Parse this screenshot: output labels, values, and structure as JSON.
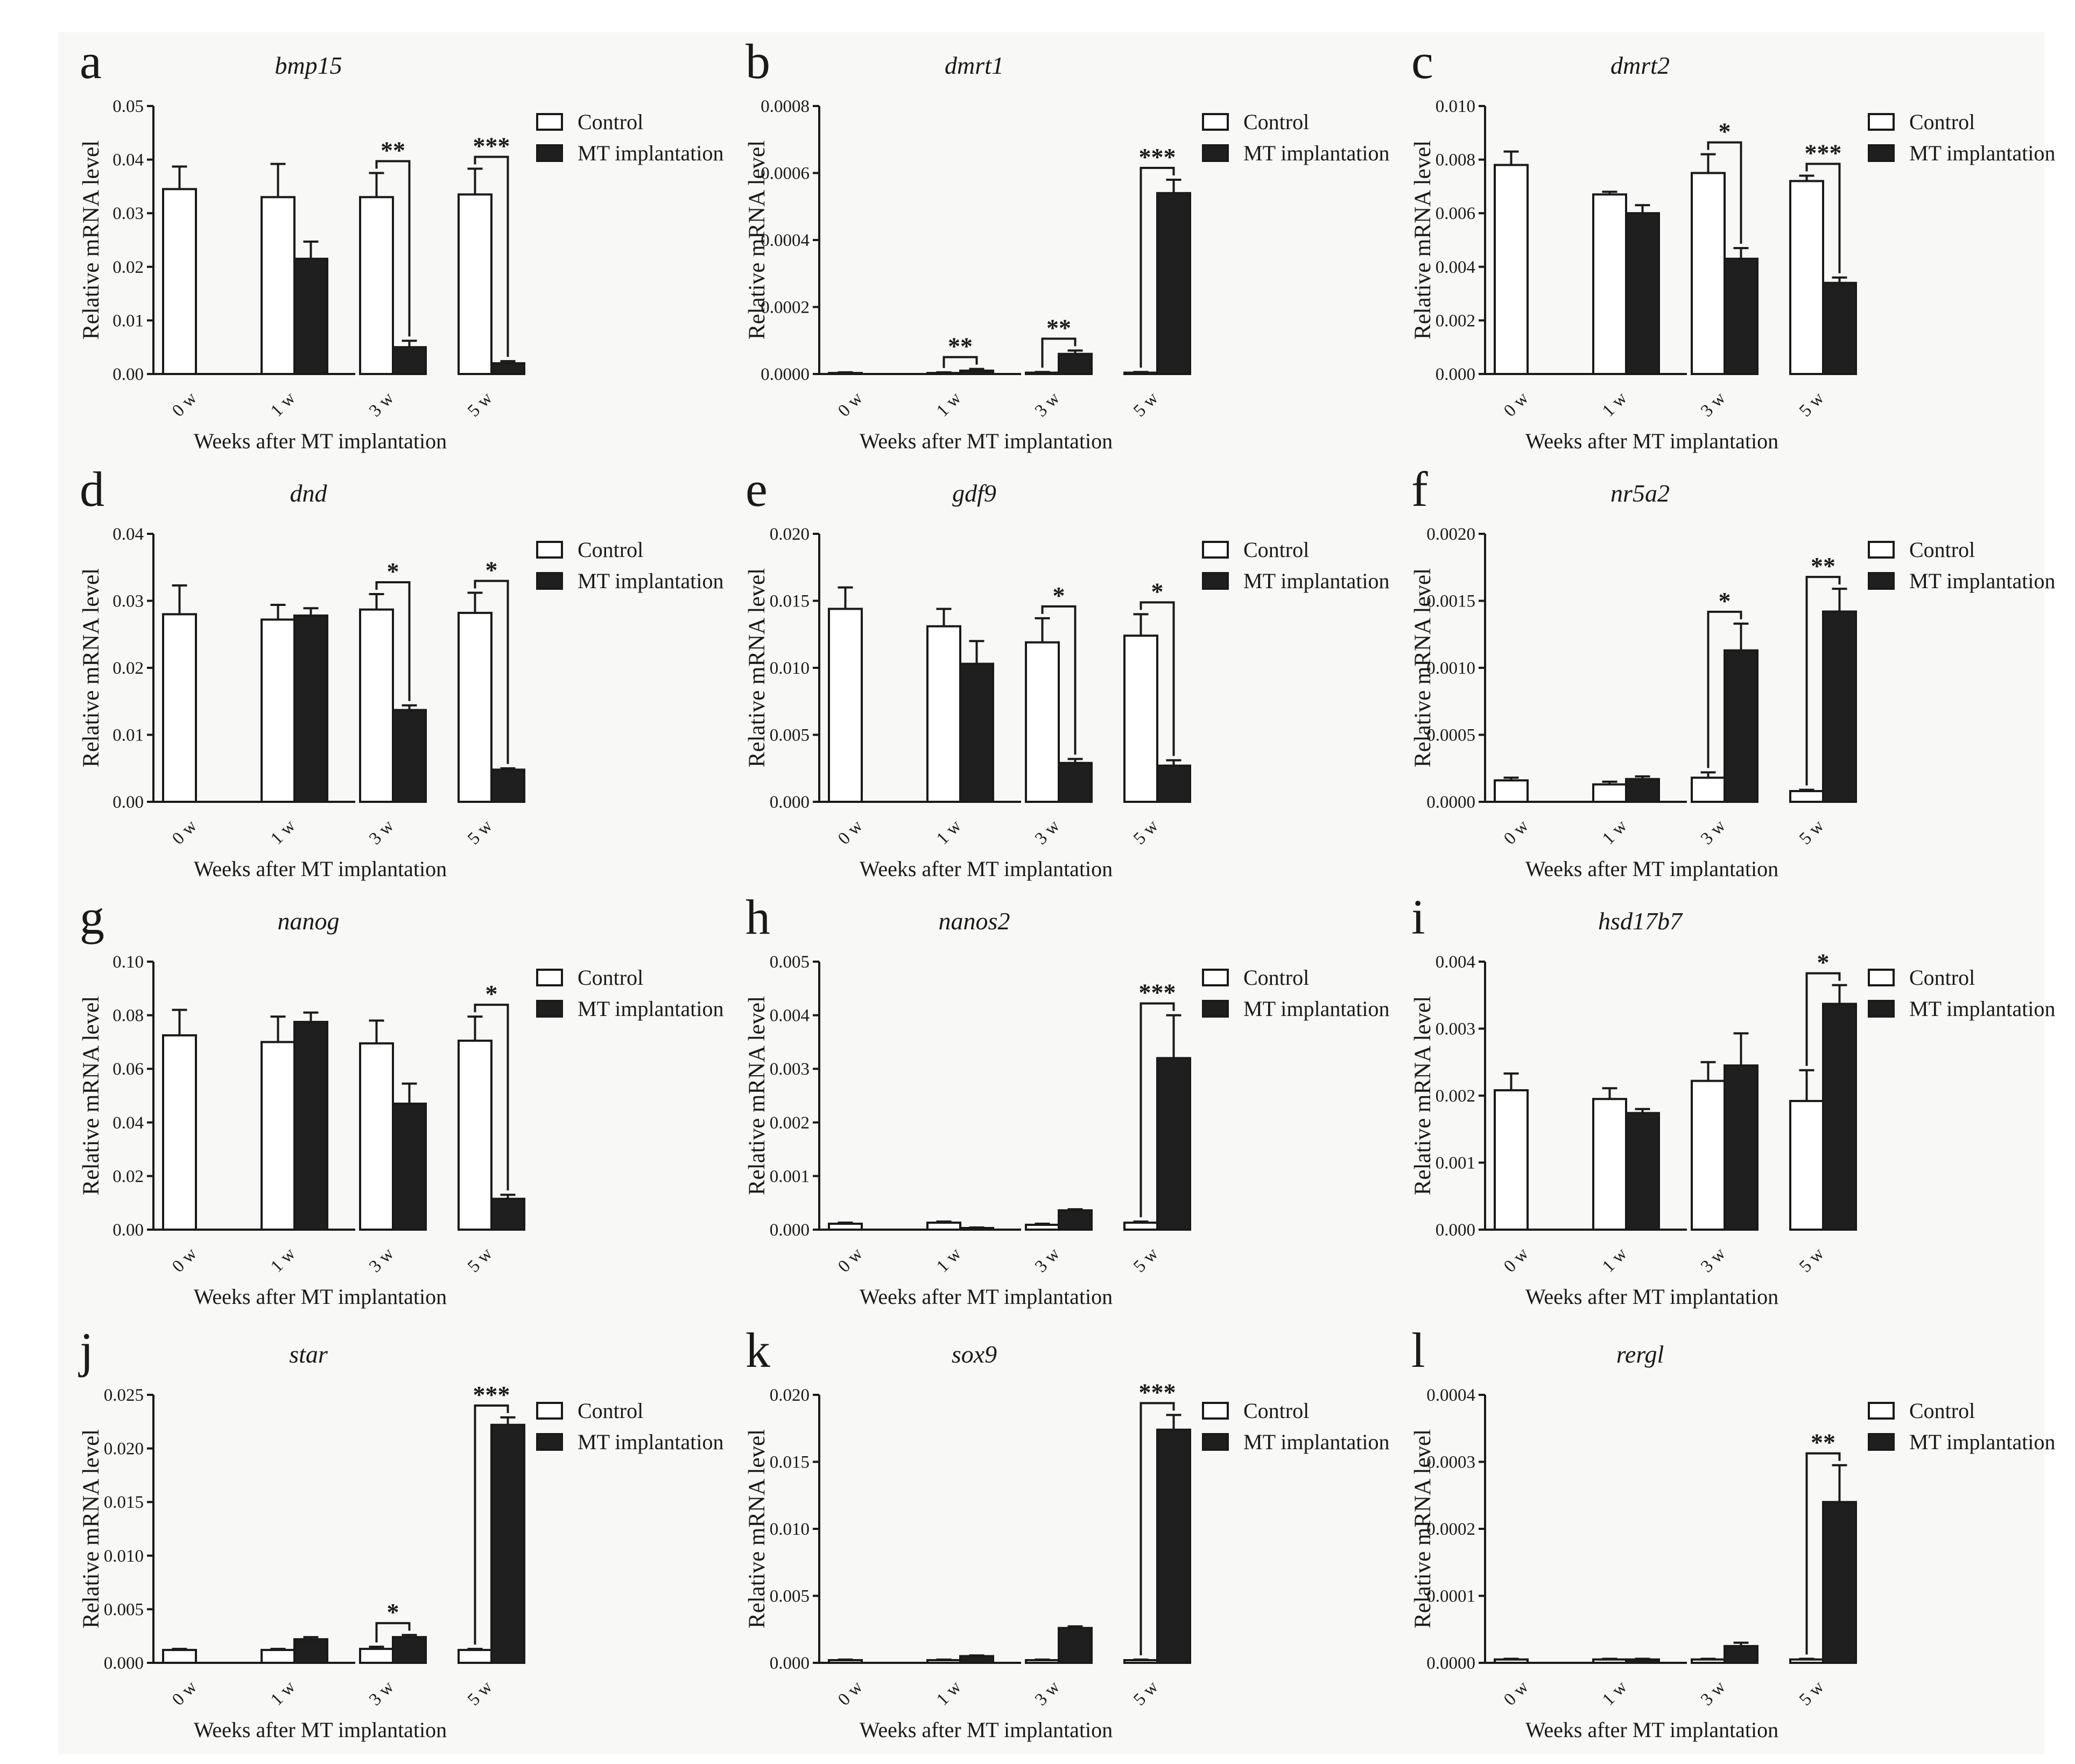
{
  "colors": {
    "background": "#f8f8f6",
    "control": "#ffffff",
    "mt": "#1f1f1f",
    "ink": "#1a1a1a"
  },
  "legend": {
    "control": "Control",
    "mt": "MT implantation"
  },
  "chart_data": [
    {
      "letter": "a",
      "type": "bar",
      "title": "bmp15",
      "ylabel": "Relative mRNA level",
      "xlabel": "Weeks after MT implantation",
      "categories": [
        "0 w",
        "1 w",
        "3 w",
        "5 w"
      ],
      "ylim": [
        0,
        0.05
      ],
      "yticks": [
        "0.00",
        "0.01",
        "0.02",
        "0.03",
        "0.04",
        "0.05"
      ],
      "series": [
        {
          "name": "Control",
          "values": [
            0.0345,
            0.033,
            0.033,
            0.0335
          ],
          "errors": [
            0.0042,
            0.0062,
            0.0045,
            0.0048
          ]
        },
        {
          "name": "MT implantation",
          "values": [
            null,
            0.0215,
            0.005,
            0.002
          ],
          "errors": [
            null,
            0.0032,
            0.0012,
            0.0004
          ]
        }
      ],
      "significance": [
        {
          "category": 2,
          "label": "**"
        },
        {
          "category": 3,
          "label": "***"
        }
      ]
    },
    {
      "letter": "b",
      "type": "bar",
      "title": "dmrt1",
      "ylabel": "Relative mRNA level",
      "xlabel": "Weeks after MT implantation",
      "categories": [
        "0 w",
        "1 w",
        "3 w",
        "5 w"
      ],
      "ylim": [
        0,
        0.0008
      ],
      "yticks": [
        "0.0000",
        "0.0002",
        "0.0004",
        "0.0006",
        "0.0008"
      ],
      "series": [
        {
          "name": "Control",
          "values": [
            3e-06,
            3e-06,
            4e-06,
            4e-06
          ],
          "errors": [
            2e-06,
            2e-06,
            2e-06,
            2e-06
          ]
        },
        {
          "name": "MT implantation",
          "values": [
            null,
            1e-05,
            6e-05,
            0.00054
          ],
          "errors": [
            null,
            5e-06,
            1e-05,
            4e-05
          ]
        }
      ],
      "significance": [
        {
          "category": 1,
          "label": "**"
        },
        {
          "category": 2,
          "label": "**"
        },
        {
          "category": 3,
          "label": "***"
        }
      ]
    },
    {
      "letter": "c",
      "type": "bar",
      "title": "dmrt2",
      "ylabel": "Relative mRNA level",
      "xlabel": "Weeks after MT implantation",
      "categories": [
        "0 w",
        "1 w",
        "3 w",
        "5 w"
      ],
      "ylim": [
        0,
        0.01
      ],
      "yticks": [
        "0.000",
        "0.002",
        "0.004",
        "0.006",
        "0.008",
        "0.010"
      ],
      "series": [
        {
          "name": "Control",
          "values": [
            0.0078,
            0.0067,
            0.0075,
            0.0072
          ],
          "errors": [
            0.0005,
            0.0001,
            0.0007,
            0.0002
          ]
        },
        {
          "name": "MT implantation",
          "values": [
            null,
            0.006,
            0.0043,
            0.0034
          ],
          "errors": [
            null,
            0.0003,
            0.0004,
            0.0002
          ]
        }
      ],
      "significance": [
        {
          "category": 2,
          "label": "*"
        },
        {
          "category": 3,
          "label": "***"
        }
      ]
    },
    {
      "letter": "d",
      "type": "bar",
      "title": "dnd",
      "ylabel": "Relative mRNA level",
      "xlabel": "Weeks after MT implantation",
      "categories": [
        "0 w",
        "1 w",
        "3 w",
        "5 w"
      ],
      "ylim": [
        0,
        0.04
      ],
      "yticks": [
        "0.00",
        "0.01",
        "0.02",
        "0.03",
        "0.04"
      ],
      "series": [
        {
          "name": "Control",
          "values": [
            0.028,
            0.0272,
            0.0287,
            0.0282
          ],
          "errors": [
            0.0043,
            0.0022,
            0.0023,
            0.003
          ]
        },
        {
          "name": "MT implantation",
          "values": [
            null,
            0.0278,
            0.0137,
            0.0048
          ],
          "errors": [
            null,
            0.0011,
            0.0007,
            0.0002
          ]
        }
      ],
      "significance": [
        {
          "category": 2,
          "label": "*"
        },
        {
          "category": 3,
          "label": "*"
        }
      ]
    },
    {
      "letter": "e",
      "type": "bar",
      "title": "gdf9",
      "ylabel": "Relative mRNA level",
      "xlabel": "Weeks after MT implantation",
      "categories": [
        "0 w",
        "1 w",
        "3 w",
        "5 w"
      ],
      "ylim": [
        0,
        0.02
      ],
      "yticks": [
        "0.000",
        "0.005",
        "0.010",
        "0.015",
        "0.020"
      ],
      "series": [
        {
          "name": "Control",
          "values": [
            0.0144,
            0.0131,
            0.0119,
            0.0124
          ],
          "errors": [
            0.0016,
            0.0013,
            0.0018,
            0.0016
          ]
        },
        {
          "name": "MT implantation",
          "values": [
            null,
            0.0103,
            0.0029,
            0.0027
          ],
          "errors": [
            null,
            0.0017,
            0.0003,
            0.0004
          ]
        }
      ],
      "significance": [
        {
          "category": 2,
          "label": "*"
        },
        {
          "category": 3,
          "label": "*"
        }
      ]
    },
    {
      "letter": "f",
      "type": "bar",
      "title": "nr5a2",
      "ylabel": "Relative mRNA level",
      "xlabel": "Weeks after MT implantation",
      "categories": [
        "0 w",
        "1 w",
        "3 w",
        "5 w"
      ],
      "ylim": [
        0,
        0.002
      ],
      "yticks": [
        "0.0000",
        "0.0005",
        "0.0010",
        "0.0015",
        "0.0020"
      ],
      "series": [
        {
          "name": "Control",
          "values": [
            0.00016,
            0.00013,
            0.00018,
            8e-05
          ],
          "errors": [
            2e-05,
            2e-05,
            4e-05,
            1e-05
          ]
        },
        {
          "name": "MT implantation",
          "values": [
            null,
            0.00017,
            0.00113,
            0.00142
          ],
          "errors": [
            null,
            2e-05,
            0.0002,
            0.00017
          ]
        }
      ],
      "significance": [
        {
          "category": 2,
          "label": "*"
        },
        {
          "category": 3,
          "label": "**"
        }
      ]
    },
    {
      "letter": "g",
      "type": "bar",
      "title": "nanog",
      "ylabel": "Relative mRNA level",
      "xlabel": "Weeks after MT implantation",
      "categories": [
        "0 w",
        "1 w",
        "3 w",
        "5 w"
      ],
      "ylim": [
        0,
        0.1
      ],
      "yticks": [
        "0.00",
        "0.02",
        "0.04",
        "0.06",
        "0.08",
        "0.10"
      ],
      "series": [
        {
          "name": "Control",
          "values": [
            0.0725,
            0.07,
            0.0695,
            0.0705
          ],
          "errors": [
            0.0095,
            0.0095,
            0.0085,
            0.009
          ]
        },
        {
          "name": "MT implantation",
          "values": [
            null,
            0.0775,
            0.047,
            0.0115
          ],
          "errors": [
            null,
            0.0035,
            0.0075,
            0.0015
          ]
        }
      ],
      "significance": [
        {
          "category": 3,
          "label": "*"
        }
      ]
    },
    {
      "letter": "h",
      "type": "bar",
      "title": "nanos2",
      "ylabel": "Relative mRNA level",
      "xlabel": "Weeks after MT implantation",
      "categories": [
        "0 w",
        "1 w",
        "3 w",
        "5 w"
      ],
      "ylim": [
        0,
        0.005
      ],
      "yticks": [
        "0.000",
        "0.001",
        "0.002",
        "0.003",
        "0.004",
        "0.005"
      ],
      "series": [
        {
          "name": "Control",
          "values": [
            0.00011,
            0.00013,
            9e-05,
            0.00013
          ],
          "errors": [
            2e-05,
            2e-05,
            2e-05,
            2e-05
          ]
        },
        {
          "name": "MT implantation",
          "values": [
            null,
            3e-05,
            0.00036,
            0.0032
          ],
          "errors": [
            null,
            1e-05,
            2e-05,
            0.0008
          ]
        }
      ],
      "significance": [
        {
          "category": 3,
          "label": "***"
        }
      ]
    },
    {
      "letter": "i",
      "type": "bar",
      "title": "hsd17b7",
      "ylabel": "Relative mRNA level",
      "xlabel": "Weeks after MT implantation",
      "categories": [
        "0 w",
        "1 w",
        "3 w",
        "5 w"
      ],
      "ylim": [
        0,
        0.004
      ],
      "yticks": [
        "0.000",
        "0.001",
        "0.002",
        "0.003",
        "0.004"
      ],
      "series": [
        {
          "name": "Control",
          "values": [
            0.00208,
            0.00195,
            0.00222,
            0.00192
          ],
          "errors": [
            0.00025,
            0.00016,
            0.00028,
            0.00046
          ]
        },
        {
          "name": "MT implantation",
          "values": [
            null,
            0.00174,
            0.00245,
            0.00337
          ],
          "errors": [
            null,
            6e-05,
            0.00048,
            0.00028
          ]
        }
      ],
      "significance": [
        {
          "category": 3,
          "label": "*"
        }
      ]
    },
    {
      "letter": "j",
      "type": "bar",
      "title": "star",
      "ylabel": "Relative mRNA level",
      "xlabel": "Weeks after MT implantation",
      "categories": [
        "0 w",
        "1 w",
        "3 w",
        "5 w"
      ],
      "ylim": [
        0,
        0.025
      ],
      "yticks": [
        "0.000",
        "0.005",
        "0.010",
        "0.015",
        "0.020",
        "0.025"
      ],
      "series": [
        {
          "name": "Control",
          "values": [
            0.0012,
            0.0012,
            0.0013,
            0.0012
          ],
          "errors": [
            0.0001,
            0.0001,
            0.0002,
            0.0001
          ]
        },
        {
          "name": "MT implantation",
          "values": [
            null,
            0.0022,
            0.0024,
            0.0222
          ],
          "errors": [
            null,
            0.0002,
            0.0002,
            0.0007
          ]
        }
      ],
      "significance": [
        {
          "category": 2,
          "label": "*"
        },
        {
          "category": 3,
          "label": "***"
        }
      ]
    },
    {
      "letter": "k",
      "type": "bar",
      "title": "sox9",
      "ylabel": "Relative mRNA level",
      "xlabel": "Weeks after MT implantation",
      "categories": [
        "0 w",
        "1 w",
        "3 w",
        "5 w"
      ],
      "ylim": [
        0,
        0.02
      ],
      "yticks": [
        "0.000",
        "0.005",
        "0.010",
        "0.015",
        "0.020"
      ],
      "series": [
        {
          "name": "Control",
          "values": [
            0.0002,
            0.0002,
            0.0002,
            0.0002
          ],
          "errors": [
            4e-05,
            4e-05,
            4e-05,
            4e-05
          ]
        },
        {
          "name": "MT implantation",
          "values": [
            null,
            0.0005,
            0.0026,
            0.0174
          ],
          "errors": [
            null,
            5e-05,
            0.00012,
            0.0011
          ]
        }
      ],
      "significance": [
        {
          "category": 3,
          "label": "***"
        }
      ]
    },
    {
      "letter": "l",
      "type": "bar",
      "title": "rergl",
      "ylabel": "Relative mRNA level",
      "xlabel": "Weeks after MT implantation",
      "categories": [
        "0 w",
        "1 w",
        "3 w",
        "5 w"
      ],
      "ylim": [
        0,
        0.0004
      ],
      "yticks": [
        "0.0000",
        "0.0001",
        "0.0002",
        "0.0003",
        "0.0004"
      ],
      "series": [
        {
          "name": "Control",
          "values": [
            5e-06,
            5e-06,
            5e-06,
            5e-06
          ],
          "errors": [
            1e-06,
            1e-06,
            1e-06,
            1e-06
          ]
        },
        {
          "name": "MT implantation",
          "values": [
            null,
            5e-06,
            2.5e-05,
            0.00024
          ],
          "errors": [
            null,
            1e-06,
            5e-06,
            5.5e-05
          ]
        }
      ],
      "significance": [
        {
          "category": 3,
          "label": "**"
        }
      ]
    }
  ]
}
